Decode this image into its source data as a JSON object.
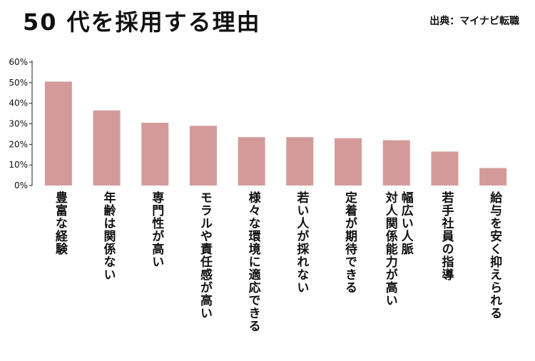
{
  "header": {
    "title": "50 代を採用する理由",
    "source": "出典：マイナビ転職"
  },
  "colors": {
    "bar": "#d49a9a",
    "axis": "#222222"
  },
  "chart_data": {
    "type": "bar",
    "title": "50 代を採用する理由",
    "xlabel": "",
    "ylabel": "",
    "ylim": [
      0,
      60
    ],
    "y_ticks": [
      "0%",
      "10%",
      "20%",
      "30%",
      "40%",
      "50%",
      "60%"
    ],
    "grid": false,
    "categories": [
      "豊富な経験",
      "年齢は関係ない",
      "専門性が高い",
      "モラルや責任感が高い",
      "様々な環境に適応できる",
      "若い人が採れない",
      "定着が期待できる",
      "幅広い人脈\n対人関係能力が高い",
      "若手社員の指導",
      "給与を安く抑えられる"
    ],
    "values": [
      50.5,
      36.5,
      30.5,
      29,
      23.5,
      23.5,
      23,
      22,
      16.5,
      8.5
    ]
  }
}
